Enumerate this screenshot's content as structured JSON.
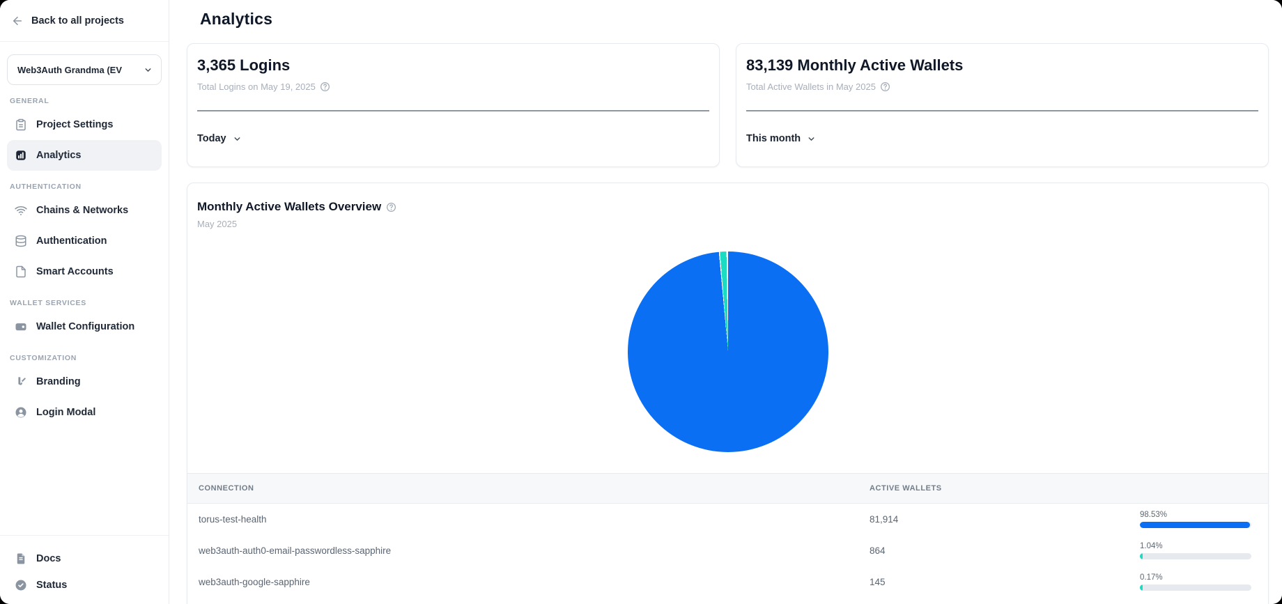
{
  "header": {
    "title": "Analytics"
  },
  "sidebar": {
    "back_label": "Back to all projects",
    "project_selector": {
      "label": "Web3Auth Grandma (EV",
      "icon": "chevron-down-icon"
    },
    "sections": [
      {
        "label": "GENERAL",
        "items": [
          {
            "label": "Project Settings",
            "icon": "clipboard-icon",
            "active": false
          },
          {
            "label": "Analytics",
            "icon": "bar-chart-icon",
            "active": true
          }
        ]
      },
      {
        "label": "AUTHENTICATION",
        "items": [
          {
            "label": "Chains & Networks",
            "icon": "wifi-icon",
            "active": false
          },
          {
            "label": "Authentication",
            "icon": "database-icon",
            "active": false
          },
          {
            "label": "Smart Accounts",
            "icon": "file-icon",
            "active": false
          }
        ]
      },
      {
        "label": "WALLET SERVICES",
        "items": [
          {
            "label": "Wallet Configuration",
            "icon": "wallet-icon",
            "active": false
          }
        ]
      },
      {
        "label": "CUSTOMIZATION",
        "items": [
          {
            "label": "Branding",
            "icon": "brush-icon",
            "active": false
          },
          {
            "label": "Login Modal",
            "icon": "user-circle-icon",
            "active": false
          }
        ]
      }
    ],
    "footer_items": [
      {
        "label": "Docs",
        "icon": "doc-icon"
      },
      {
        "label": "Status",
        "icon": "check-circle-icon"
      }
    ]
  },
  "stat_cards": [
    {
      "headline": "3,365 Logins",
      "subtitle": "Total Logins on May 19, 2025",
      "range_label": "Today"
    },
    {
      "headline": "83,139 Monthly Active Wallets",
      "subtitle": "Total Active Wallets in May 2025",
      "range_label": "This month"
    }
  ],
  "overview_card": {
    "title": "Monthly Active Wallets Overview",
    "subtitle": "May 2025"
  },
  "chart_data": {
    "type": "pie",
    "title": "Monthly Active Wallets Overview",
    "subtitle": "May 2025",
    "total_label": "83,139 Monthly Active Wallets",
    "slices": [
      {
        "label": "torus-test-health",
        "value": 81914,
        "pct": 98.53,
        "color": "#0B6FF3"
      },
      {
        "label": "web3auth-auth0-email-passwordless-sapphire",
        "value": 864,
        "pct": 1.04,
        "color": "#1BDCC3"
      },
      {
        "label": "web3auth-google-sapphire",
        "value": 145,
        "pct": 0.17,
        "color": "#ffffff"
      }
    ]
  },
  "table": {
    "columns": [
      "CONNECTION",
      "ACTIVE WALLETS",
      ""
    ],
    "rows": [
      {
        "connection": "torus-test-health",
        "wallets": "81,914",
        "pct": "98.53%",
        "bar_pct": 98.53,
        "bar_color": "#0B6FF3"
      },
      {
        "connection": "web3auth-auth0-email-passwordless-sapphire",
        "wallets": "864",
        "pct": "1.04%",
        "bar_pct": 2.5,
        "bar_color": "#1BDCC3"
      },
      {
        "connection": "web3auth-google-sapphire",
        "wallets": "145",
        "pct": "0.17%",
        "bar_pct": 1.5,
        "bar_color": "#1BDCC3"
      }
    ]
  },
  "colors": {
    "accent_blue": "#0B6FF3",
    "accent_teal": "#1BDCC3",
    "bar_track": "#e6e9ed",
    "active_item_bg": "#f1f2f5"
  }
}
